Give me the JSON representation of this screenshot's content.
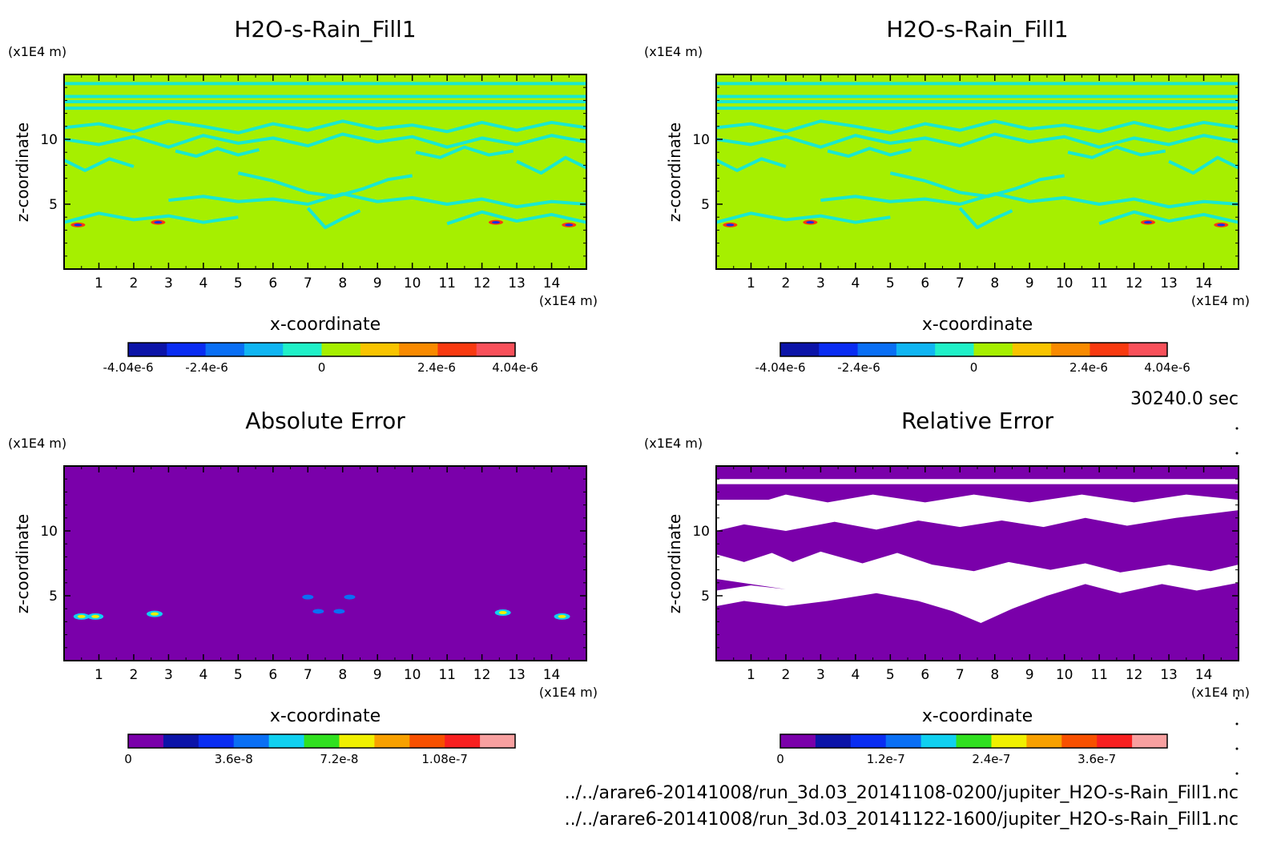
{
  "chart_data": [
    {
      "type": "heatmap",
      "title": "H2O-s-Rain_Fill1",
      "xlabel": "x-coordinate",
      "ylabel": "z-coordinate",
      "x_unit": "(x1E4 m)",
      "y_unit": "(x1E4 m)",
      "xlim": [
        0,
        15
      ],
      "ylim": [
        0,
        15
      ],
      "x_ticks": [
        "1",
        "2",
        "3",
        "4",
        "5",
        "6",
        "7",
        "8",
        "9",
        "10",
        "11",
        "12",
        "13",
        "14"
      ],
      "y_ticks": [
        "5",
        "10"
      ],
      "background_color": "#a6ef00",
      "contour_color": "#19e8d0",
      "colorbar": {
        "colors": [
          "#0c14a8",
          "#0a2df2",
          "#0a6ff4",
          "#10b5f2",
          "#20f0c8",
          "#a6ef00",
          "#f8c400",
          "#f88a00",
          "#f83a10",
          "#f8505a"
        ],
        "tick_labels": [
          "-4.04e-6",
          "-2.4e-6",
          "0",
          "2.4e-6",
          "4.04e-6"
        ],
        "tick_values": [
          -4.04e-06,
          -2.4e-06,
          0,
          2.4e-06,
          4.04e-06
        ],
        "range": [
          -4.04e-06,
          4.04e-06
        ]
      }
    },
    {
      "type": "heatmap",
      "title": "H2O-s-Rain_Fill1",
      "xlabel": "x-coordinate",
      "ylabel": "z-coordinate",
      "x_unit": "(x1E4 m)",
      "y_unit": "(x1E4 m)",
      "xlim": [
        0,
        15
      ],
      "ylim": [
        0,
        15
      ],
      "x_ticks": [
        "1",
        "2",
        "3",
        "4",
        "5",
        "6",
        "7",
        "8",
        "9",
        "10",
        "11",
        "12",
        "13",
        "14"
      ],
      "y_ticks": [
        "5",
        "10"
      ],
      "background_color": "#a6ef00",
      "contour_color": "#19e8d0",
      "colorbar": {
        "colors": [
          "#0c14a8",
          "#0a2df2",
          "#0a6ff4",
          "#10b5f2",
          "#20f0c8",
          "#a6ef00",
          "#f8c400",
          "#f88a00",
          "#f83a10",
          "#f8505a"
        ],
        "tick_labels": [
          "-4.04e-6",
          "-2.4e-6",
          "0",
          "2.4e-6",
          "4.04e-6"
        ],
        "tick_values": [
          -4.04e-06,
          -2.4e-06,
          0,
          2.4e-06,
          4.04e-06
        ],
        "range": [
          -4.04e-06,
          4.04e-06
        ]
      }
    },
    {
      "type": "heatmap",
      "title": "Absolute Error",
      "xlabel": "x-coordinate",
      "ylabel": "z-coordinate",
      "x_unit": "(x1E4 m)",
      "y_unit": "(x1E4 m)",
      "xlim": [
        0,
        15
      ],
      "ylim": [
        0,
        15
      ],
      "x_ticks": [
        "1",
        "2",
        "3",
        "4",
        "5",
        "6",
        "7",
        "8",
        "9",
        "10",
        "11",
        "12",
        "13",
        "14"
      ],
      "y_ticks": [
        "5",
        "10"
      ],
      "background_color": "#7a00aa",
      "colorbar": {
        "colors": [
          "#7a00aa",
          "#0c14a8",
          "#0a2df2",
          "#0a6ff4",
          "#10d0f0",
          "#30e020",
          "#f0f000",
          "#f8a000",
          "#f85000",
          "#f82020",
          "#f8a0a0"
        ],
        "tick_labels": [
          "0",
          "3.6e-8",
          "7.2e-8",
          "1.08e-7"
        ],
        "tick_values": [
          0,
          3.6e-08,
          7.2e-08,
          1.08e-07
        ],
        "range": [
          0,
          1.32e-07
        ]
      }
    },
    {
      "type": "heatmap",
      "title": "Relative Error",
      "xlabel": "x-coordinate",
      "ylabel": "z-coordinate",
      "x_unit": "(x1E4 m)",
      "y_unit": "(x1E4 m)",
      "xlim": [
        0,
        15
      ],
      "ylim": [
        0,
        15
      ],
      "x_ticks": [
        "1",
        "2",
        "3",
        "4",
        "5",
        "6",
        "7",
        "8",
        "9",
        "10",
        "11",
        "12",
        "13",
        "14"
      ],
      "y_ticks": [
        "5",
        "10"
      ],
      "background_color": "#7a00aa",
      "colorbar": {
        "colors": [
          "#7a00aa",
          "#0c14a8",
          "#0a2df2",
          "#0a6ff4",
          "#10d0f0",
          "#30e020",
          "#f0f000",
          "#f8a000",
          "#f85000",
          "#f82020",
          "#f8a0a0"
        ],
        "tick_labels": [
          "0",
          "1.2e-7",
          "2.4e-7",
          "3.6e-7"
        ],
        "tick_values": [
          0,
          1.2e-07,
          2.4e-07,
          3.6e-07
        ],
        "range": [
          0,
          4.4e-07
        ]
      }
    }
  ],
  "time_label": "30240.0 sec",
  "file_paths": [
    "../../arare6-20141008/run_3d.03_20141108-0200/jupiter_H2O-s-Rain_Fill1.nc",
    "../../arare6-20141008/run_3d.03_20141122-1600/jupiter_H2O-s-Rain_Fill1.nc"
  ]
}
